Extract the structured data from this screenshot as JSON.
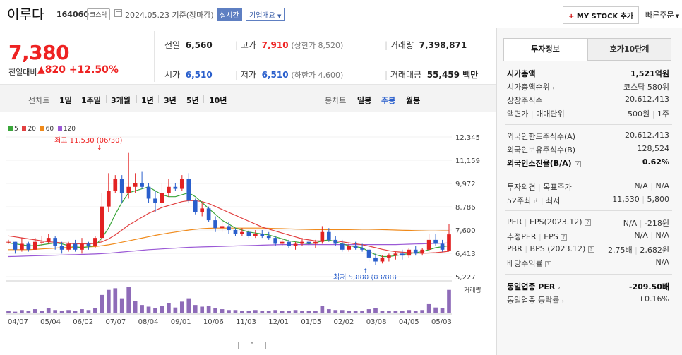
{
  "header": {
    "name": "이루다",
    "code": "164060",
    "market": "코스닥",
    "date": "2024.05.23 기준(장마감)",
    "realtime": "실시간",
    "corp_info": "기업개요",
    "mystock": "MY STOCK 추가",
    "quick_order": "빠른주문"
  },
  "price": {
    "current": "7,380",
    "change_label": "전일대비",
    "change": "▲820",
    "change_pct": "+12.50%",
    "prev_label": "전일",
    "prev": "6,560",
    "high_label": "고가",
    "high": "7,910",
    "upper_limit": "(상한가 8,520)",
    "volume_label": "거래량",
    "volume": "7,398,871",
    "open_label": "시가",
    "open": "6,510",
    "low_label": "저가",
    "low": "6,510",
    "lower_limit": "(하한가 4,600)",
    "amount_label": "거래대금",
    "amount": "55,459 백만"
  },
  "period": {
    "line_label": "선차트",
    "line_items": [
      "1일",
      "1주일",
      "3개월",
      "1년",
      "3년",
      "5년",
      "10년"
    ],
    "candle_label": "봉차트",
    "candle_items": [
      "일봉",
      "주봉",
      "월봉"
    ],
    "active": "주봉"
  },
  "tabs": [
    "투자정보",
    "호가10단계"
  ],
  "info": {
    "market_cap_label": "시가총액",
    "market_cap": "1,521억원",
    "rank_label": "시가총액순위",
    "rank": "코스닥 580위",
    "shares_label": "상장주식수",
    "shares": "20,612,413",
    "par_label": "액면가",
    "unit_label": "매매단위",
    "par": "500원",
    "unit": "1주",
    "foreign_limit_label": "외국인한도주식수(A)",
    "foreign_limit": "20,612,413",
    "foreign_hold_label": "외국인보유주식수(B)",
    "foreign_hold": "128,524",
    "foreign_ratio_label": "외국인소진율(B/A)",
    "foreign_ratio": "0.62%",
    "opinion_label": "투자의견",
    "target_label": "목표주가",
    "opinion": "N/A",
    "target": "N/A",
    "w52_high_label": "52주최고",
    "w52_low_label": "최저",
    "w52_high": "11,530",
    "w52_low": "5,800",
    "per_label": "PER",
    "eps_label": "EPS(2023.12)",
    "per": "N/A",
    "eps": "-218원",
    "est_per_label": "추정PER",
    "est_eps_label": "EPS",
    "est_per": "N/A",
    "est_eps": "N/A",
    "pbr_label": "PBR",
    "bps_label": "BPS (2023.12)",
    "pbr": "2.75배",
    "bps": "2,682원",
    "div_label": "배당수익률",
    "div": "N/A",
    "industry_per_label": "동일업종 PER",
    "industry_per": "-209.50배",
    "industry_rate_label": "동일업종 등락률",
    "industry_rate": "+0.16%"
  },
  "colors": {
    "up": "#e22222",
    "down": "#2a5fcc",
    "ma5": "#3aa63a",
    "ma20": "#e24040",
    "ma60": "#f08a1a",
    "ma120": "#9b59d6",
    "volume": "#8e6bb8"
  },
  "chart_data": {
    "type": "candlestick",
    "legend": [
      "5",
      "20",
      "60",
      "120"
    ],
    "y_ticks": [
      "12,345",
      "11,159",
      "9,972",
      "8,786",
      "7,600",
      "6,413",
      "5,227"
    ],
    "ylim": [
      5227,
      12345
    ],
    "x_ticks": [
      "04/07",
      "05/04",
      "06/02",
      "07/07",
      "08/04",
      "09/01",
      "10/06",
      "11/03",
      "12/01",
      "01/05",
      "02/02",
      "03/08",
      "04/05",
      "05/03"
    ],
    "high_annotation": "최고 11,530 (06/30)",
    "low_annotation": "최저 5,800 (03/08)",
    "volume_label": "거래량",
    "candles": [
      [
        7000,
        7100,
        6900,
        7000
      ],
      [
        7000,
        7000,
        6400,
        6600
      ],
      [
        6600,
        7200,
        6500,
        6900
      ],
      [
        6900,
        7000,
        6500,
        6600
      ],
      [
        6600,
        7200,
        6600,
        7000
      ],
      [
        7000,
        7300,
        6800,
        7000
      ],
      [
        7000,
        7400,
        6900,
        7200
      ],
      [
        7200,
        7300,
        6600,
        6800
      ],
      [
        6800,
        7000,
        6400,
        6600
      ],
      [
        6600,
        7000,
        6500,
        6900
      ],
      [
        6900,
        7100,
        6500,
        6600
      ],
      [
        6600,
        7200,
        6400,
        6900
      ],
      [
        6900,
        7000,
        6600,
        6800
      ],
      [
        6800,
        7300,
        6700,
        7200
      ],
      [
        7200,
        9500,
        7000,
        8800
      ],
      [
        8800,
        10500,
        8500,
        9600
      ],
      [
        9600,
        10400,
        9500,
        10200
      ],
      [
        10200,
        10400,
        9000,
        9500
      ],
      [
        9500,
        11530,
        9200,
        9800
      ],
      [
        9800,
        10500,
        9500,
        10000
      ],
      [
        10000,
        10600,
        9700,
        9800
      ],
      [
        9800,
        10000,
        9000,
        9200
      ],
      [
        9200,
        9600,
        8500,
        9000
      ],
      [
        9000,
        10000,
        8700,
        9500
      ],
      [
        9500,
        10200,
        9300,
        9800
      ],
      [
        9800,
        10000,
        9600,
        9700
      ],
      [
        9700,
        10400,
        9600,
        10200
      ],
      [
        10200,
        10500,
        9000,
        9100
      ],
      [
        9100,
        9200,
        8400,
        8500
      ],
      [
        8500,
        9000,
        8300,
        8700
      ],
      [
        8700,
        8800,
        8000,
        8100
      ],
      [
        8100,
        8300,
        7500,
        7700
      ],
      [
        7700,
        8000,
        7500,
        7800
      ],
      [
        7800,
        8000,
        7400,
        7600
      ],
      [
        7600,
        7700,
        7300,
        7400
      ],
      [
        7400,
        7700,
        7300,
        7500
      ],
      [
        7500,
        7600,
        7200,
        7300
      ],
      [
        7300,
        7600,
        7200,
        7400
      ],
      [
        7400,
        7600,
        7200,
        7300
      ],
      [
        7300,
        7500,
        7100,
        7200
      ],
      [
        7200,
        7300,
        6800,
        6900
      ],
      [
        6900,
        7200,
        6800,
        7000
      ],
      [
        7000,
        7100,
        6700,
        6800
      ],
      [
        6800,
        7000,
        6600,
        6900
      ],
      [
        6900,
        7200,
        6800,
        7000
      ],
      [
        7000,
        7100,
        6800,
        6900
      ],
      [
        6900,
        7100,
        6700,
        7000
      ],
      [
        7000,
        7800,
        6900,
        7500
      ],
      [
        7500,
        7700,
        7000,
        7100
      ],
      [
        7100,
        7300,
        6800,
        6900
      ],
      [
        6900,
        7100,
        6500,
        6600
      ],
      [
        6600,
        6900,
        6500,
        6800
      ],
      [
        6800,
        7000,
        6600,
        6700
      ],
      [
        6700,
        6900,
        6500,
        6600
      ],
      [
        6600,
        6700,
        6000,
        6200
      ],
      [
        6200,
        6400,
        5800,
        6000
      ],
      [
        6000,
        6300,
        5900,
        6200
      ],
      [
        6200,
        6400,
        6000,
        6300
      ],
      [
        6300,
        6500,
        6100,
        6400
      ],
      [
        6400,
        6600,
        6100,
        6300
      ],
      [
        6300,
        6700,
        6200,
        6600
      ],
      [
        6600,
        6800,
        6300,
        6400
      ],
      [
        6400,
        6700,
        6300,
        6600
      ],
      [
        6600,
        7400,
        6500,
        7100
      ],
      [
        7100,
        7400,
        6800,
        6900
      ],
      [
        6900,
        7100,
        6500,
        6600
      ],
      [
        6560,
        7910,
        6510,
        7380
      ]
    ],
    "volumes": [
      3,
      2,
      4,
      3,
      5,
      3,
      6,
      4,
      3,
      4,
      3,
      5,
      4,
      6,
      22,
      28,
      30,
      18,
      32,
      15,
      10,
      8,
      6,
      9,
      12,
      7,
      14,
      18,
      10,
      8,
      9,
      6,
      5,
      4,
      4,
      3,
      3,
      4,
      3,
      3,
      4,
      3,
      3,
      4,
      3,
      3,
      3,
      9,
      5,
      4,
      4,
      3,
      3,
      3,
      5,
      6,
      3,
      3,
      3,
      3,
      4,
      3,
      4,
      11,
      7,
      6,
      28
    ],
    "ma5": [
      6950,
      6900,
      6850,
      6800,
      6800,
      6850,
      6900,
      6950,
      6900,
      6800,
      6750,
      6700,
      6750,
      6800,
      7200,
      7700,
      8400,
      9000,
      9500,
      9600,
      9700,
      9800,
      9600,
      9400,
      9300,
      9300,
      9400,
      9500,
      9300,
      9000,
      8700,
      8400,
      8100,
      7900,
      7700,
      7600,
      7500,
      7450,
      7400,
      7350,
      7250,
      7150,
      7050,
      7000,
      6950,
      6900,
      6950,
      7050,
      7100,
      7000,
      6900,
      6800,
      6750,
      6700,
      6500,
      6350,
      6250,
      6250,
      6300,
      6350,
      6400,
      6450,
      6500,
      6600,
      6700,
      6750,
      6800
    ],
    "ma20": [
      7300,
      7250,
      7200,
      7150,
      7100,
      7050,
      7000,
      6980,
      6950,
      6930,
      6900,
      6900,
      6900,
      6920,
      7000,
      7150,
      7350,
      7600,
      7850,
      8050,
      8250,
      8450,
      8600,
      8750,
      8850,
      8950,
      9050,
      9100,
      9100,
      9050,
      8950,
      8800,
      8650,
      8500,
      8350,
      8200,
      8050,
      7900,
      7750,
      7650,
      7550,
      7450,
      7350,
      7250,
      7150,
      7100,
      7050,
      7050,
      7050,
      7050,
      7000,
      6950,
      6900,
      6850,
      6780,
      6700,
      6620,
      6550,
      6500,
      6470,
      6450,
      6430,
      6420,
      6430,
      6450,
      6480,
      6520
    ],
    "ma60": [
      6600,
      6600,
      6600,
      6600,
      6620,
      6640,
      6660,
      6680,
      6700,
      6710,
      6720,
      6730,
      6740,
      6760,
      6800,
      6850,
      6910,
      6980,
      7050,
      7120,
      7190,
      7260,
      7330,
      7390,
      7450,
      7500,
      7550,
      7600,
      7640,
      7670,
      7690,
      7700,
      7700,
      7700,
      7700,
      7700,
      7700,
      7700,
      7700,
      7690,
      7680,
      7670,
      7660,
      7650,
      7640,
      7630,
      7620,
      7620,
      7620,
      7620,
      7620,
      7620,
      7630,
      7640,
      7640,
      7630,
      7620,
      7610,
      7600,
      7590,
      7580,
      7570,
      7560,
      7550,
      7550,
      7560,
      7560
    ],
    "ma120": [
      6250,
      6260,
      6270,
      6280,
      6290,
      6300,
      6310,
      6320,
      6330,
      6340,
      6350,
      6360,
      6370,
      6380,
      6400,
      6420,
      6450,
      6480,
      6510,
      6540,
      6570,
      6600,
      6620,
      6640,
      6660,
      6680,
      6700,
      6720,
      6730,
      6740,
      6750,
      6760,
      6770,
      6780,
      6790,
      6800,
      6810,
      6820,
      6830,
      6840,
      6850,
      6860,
      6860,
      6860,
      6860,
      6860,
      6860,
      6860,
      6860,
      6860,
      6860,
      6860,
      6860,
      6860,
      6860,
      6860,
      6860,
      6860,
      6860,
      6870,
      6880,
      6890,
      6900,
      6910,
      6920,
      6930,
      6940
    ]
  }
}
